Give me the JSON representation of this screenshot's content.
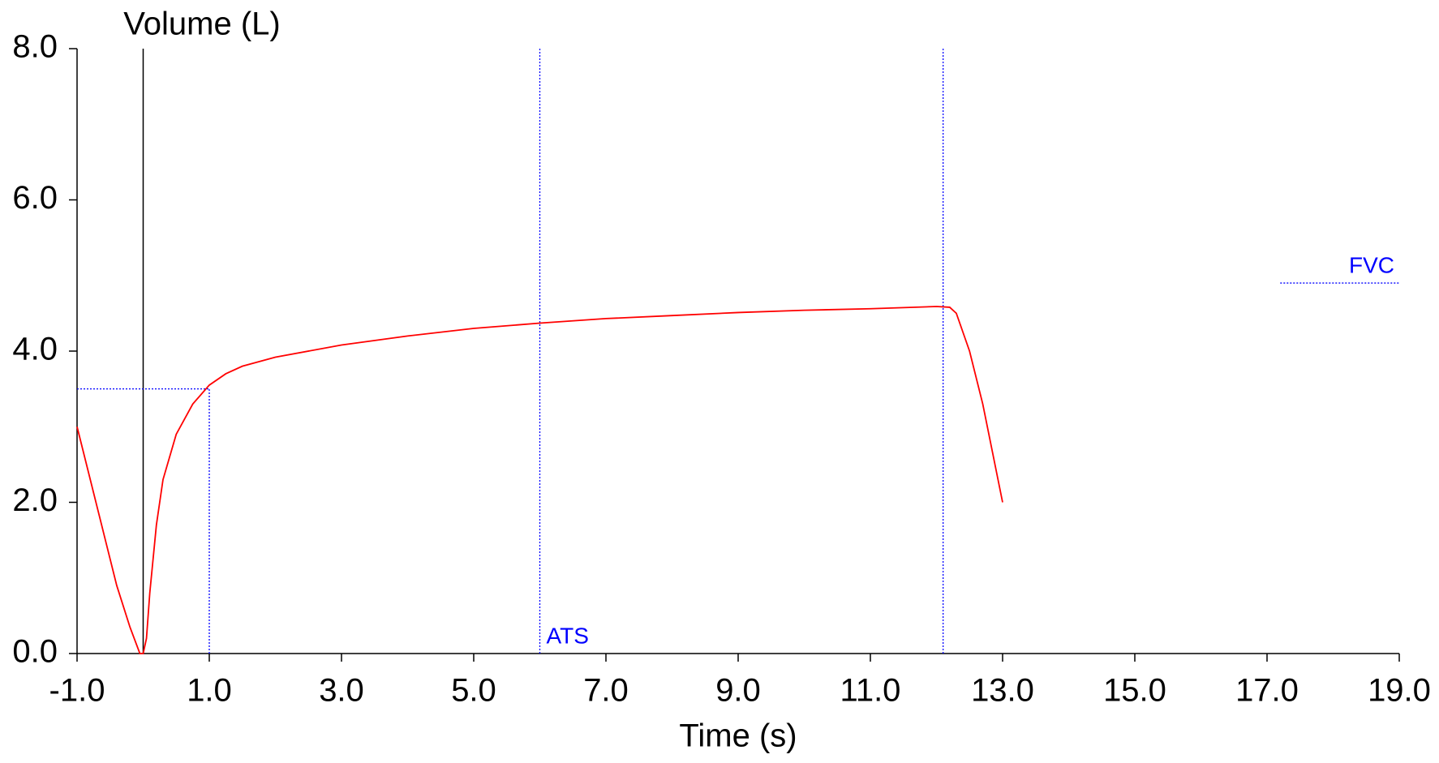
{
  "chart_data": {
    "type": "line",
    "ylabel": "Volume (L)",
    "xlabel": "Time (s)",
    "x": [
      -1.0,
      -0.8,
      -0.6,
      -0.4,
      -0.2,
      -0.05,
      0.0,
      0.05,
      0.1,
      0.2,
      0.3,
      0.5,
      0.75,
      1.0,
      1.25,
      1.5,
      2.0,
      3.0,
      4.0,
      5.0,
      6.0,
      7.0,
      8.0,
      9.0,
      10.0,
      11.0,
      12.0,
      12.2,
      12.3,
      12.5,
      12.7,
      13.0
    ],
    "values": [
      3.0,
      2.3,
      1.6,
      0.9,
      0.35,
      0.0,
      0.0,
      0.2,
      0.8,
      1.7,
      2.3,
      2.9,
      3.3,
      3.55,
      3.7,
      3.8,
      3.92,
      4.08,
      4.2,
      4.3,
      4.37,
      4.43,
      4.47,
      4.51,
      4.54,
      4.56,
      4.59,
      4.58,
      4.5,
      4.0,
      3.3,
      2.0
    ],
    "color": "#ff0000",
    "xlim": [
      -1.0,
      19.0
    ],
    "xticks": [
      {
        "value": -1,
        "label": "-1.0"
      },
      {
        "value": 1,
        "label": "1.0"
      },
      {
        "value": 3,
        "label": "3.0"
      },
      {
        "value": 5,
        "label": "5.0"
      },
      {
        "value": 7,
        "label": "7.0"
      },
      {
        "value": 9,
        "label": "9.0"
      },
      {
        "value": 11,
        "label": "11.0"
      },
      {
        "value": 13,
        "label": "13.0"
      },
      {
        "value": 15,
        "label": "15.0"
      },
      {
        "value": 17,
        "label": "17.0"
      },
      {
        "value": 19,
        "label": "19.0"
      }
    ],
    "ylim": [
      0.0,
      8.0
    ],
    "yticks": [
      {
        "value": 0,
        "label": "0.0"
      },
      {
        "value": 2,
        "label": "2.0"
      },
      {
        "value": 4,
        "label": "4.0"
      },
      {
        "value": 6,
        "label": "6.0"
      },
      {
        "value": 8,
        "label": "8.0"
      }
    ],
    "vlines": [
      {
        "x": 0,
        "color": "#000000",
        "style": "solid"
      },
      {
        "x": 1.0,
        "ymax": 3.5,
        "color": "#0000ff",
        "style": "dotted"
      },
      {
        "x": 6.0,
        "color": "#0000ff",
        "style": "dotted",
        "label": "ATS"
      },
      {
        "x": 12.1,
        "color": "#0000ff",
        "style": "dotted"
      }
    ],
    "hlines": [
      {
        "y": 3.5,
        "x0": -1.0,
        "x1": 1.0,
        "color": "#0000ff",
        "style": "dotted"
      },
      {
        "y": 4.9,
        "x0": 17.2,
        "x1": 19.0,
        "color": "#0000ff",
        "style": "dotted",
        "label": "FVC"
      }
    ]
  }
}
